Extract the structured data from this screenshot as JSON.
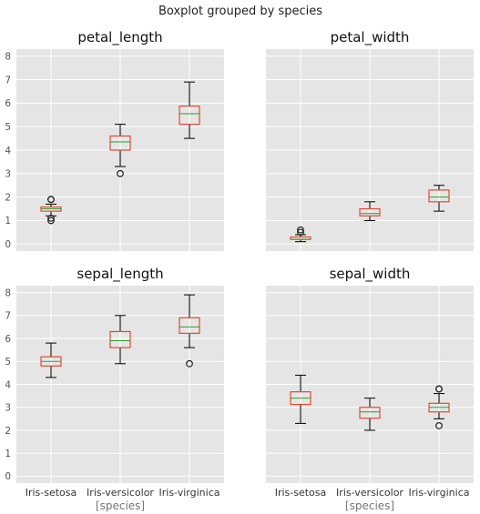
{
  "chart_data": {
    "type": "boxplot",
    "title": "Boxplot grouped by species",
    "xlabel": "[species]",
    "categories": [
      "Iris-setosa",
      "Iris-versicolor",
      "Iris-virginica"
    ],
    "ylim": [
      -0.3,
      8.3
    ],
    "yticks": [
      "0",
      "1",
      "2",
      "3",
      "4",
      "5",
      "6",
      "7",
      "8"
    ],
    "grid": true,
    "colors": {
      "box": "#e24a33",
      "median": "#2ca02c",
      "whisker": "#000000",
      "background": "#e5e5e5",
      "grid": "#ffffff"
    },
    "panels": [
      {
        "title": "petal_length",
        "boxes": [
          {
            "category": "Iris-setosa",
            "whislo": 1.2,
            "q1": 1.4,
            "median": 1.5,
            "q3": 1.575,
            "whishi": 1.7,
            "fliers": [
              1.0,
              1.1,
              1.9,
              1.9
            ]
          },
          {
            "category": "Iris-versicolor",
            "whislo": 3.3,
            "q1": 4.0,
            "median": 4.35,
            "q3": 4.6,
            "whishi": 5.1,
            "fliers": [
              3.0
            ]
          },
          {
            "category": "Iris-virginica",
            "whislo": 4.5,
            "q1": 5.1,
            "median": 5.55,
            "q3": 5.875,
            "whishi": 6.9,
            "fliers": []
          }
        ]
      },
      {
        "title": "petal_width",
        "boxes": [
          {
            "category": "Iris-setosa",
            "whislo": 0.1,
            "q1": 0.2,
            "median": 0.2,
            "q3": 0.3,
            "whishi": 0.4,
            "fliers": [
              0.5,
              0.6
            ]
          },
          {
            "category": "Iris-versicolor",
            "whislo": 1.0,
            "q1": 1.2,
            "median": 1.3,
            "q3": 1.5,
            "whishi": 1.8,
            "fliers": []
          },
          {
            "category": "Iris-virginica",
            "whislo": 1.4,
            "q1": 1.8,
            "median": 2.0,
            "q3": 2.3,
            "whishi": 2.5,
            "fliers": []
          }
        ]
      },
      {
        "title": "sepal_length",
        "boxes": [
          {
            "category": "Iris-setosa",
            "whislo": 4.3,
            "q1": 4.8,
            "median": 5.0,
            "q3": 5.2,
            "whishi": 5.8,
            "fliers": []
          },
          {
            "category": "Iris-versicolor",
            "whislo": 4.9,
            "q1": 5.6,
            "median": 5.9,
            "q3": 6.3,
            "whishi": 7.0,
            "fliers": []
          },
          {
            "category": "Iris-virginica",
            "whislo": 5.6,
            "q1": 6.225,
            "median": 6.5,
            "q3": 6.9,
            "whishi": 7.9,
            "fliers": [
              4.9
            ]
          }
        ]
      },
      {
        "title": "sepal_width",
        "boxes": [
          {
            "category": "Iris-setosa",
            "whislo": 2.3,
            "q1": 3.125,
            "median": 3.4,
            "q3": 3.675,
            "whishi": 4.4,
            "fliers": []
          },
          {
            "category": "Iris-versicolor",
            "whislo": 2.0,
            "q1": 2.525,
            "median": 2.8,
            "q3": 3.0,
            "whishi": 3.4,
            "fliers": []
          },
          {
            "category": "Iris-virginica",
            "whislo": 2.5,
            "q1": 2.8,
            "median": 3.0,
            "q3": 3.175,
            "whishi": 3.6,
            "fliers": [
              2.2,
              3.8,
              3.8
            ]
          }
        ]
      }
    ]
  }
}
